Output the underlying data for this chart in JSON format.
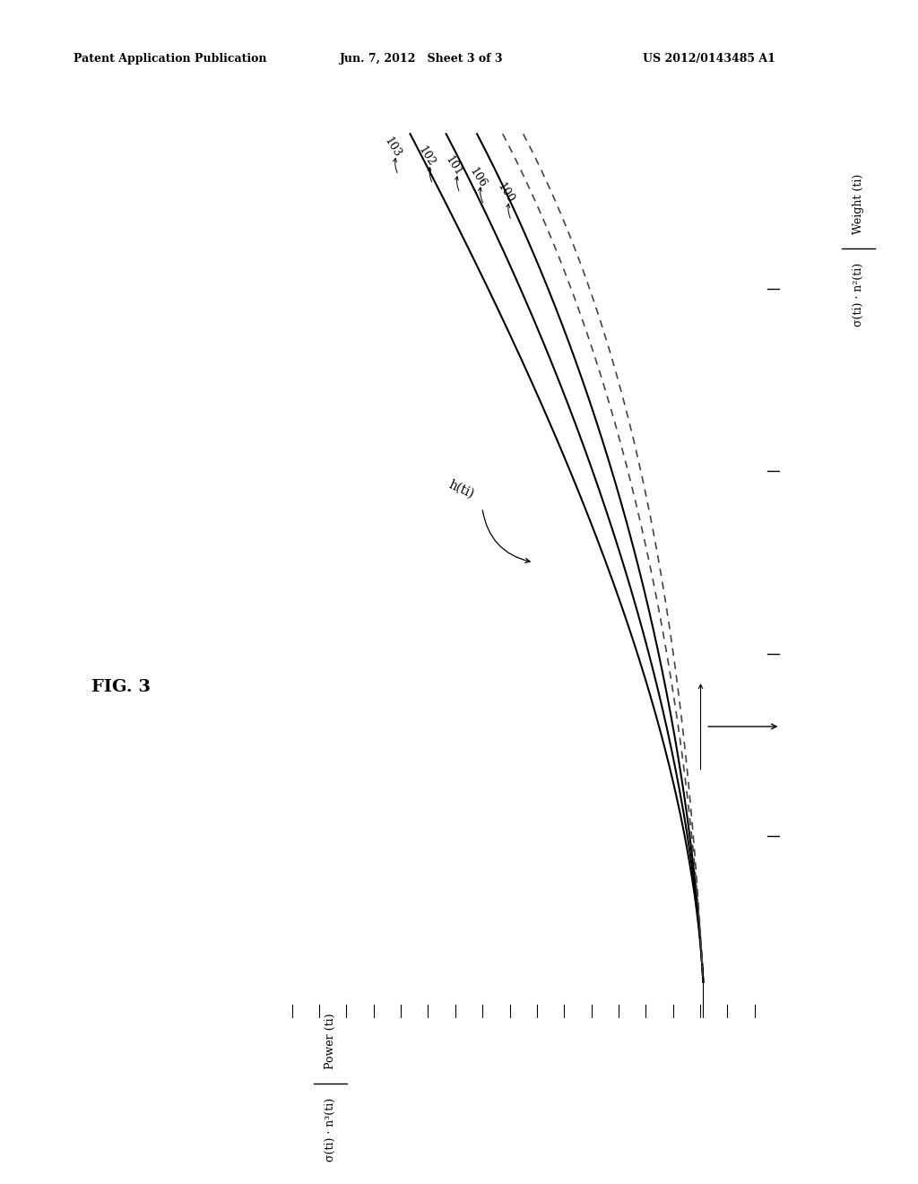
{
  "background_color": "#ffffff",
  "header_left": "Patent Application Publication",
  "header_center": "Jun. 7, 2012   Sheet 3 of 3",
  "header_right": "US 2012/0143485 A1",
  "fig_label": "FIG. 3",
  "h_label": "h(ti)",
  "ylabel_top": "Weight (ti)",
  "ylabel_bot": "σ(ti) · n²(ti)",
  "xlabel_top": "Power (ti)",
  "xlabel_bot": "σ(ti) · n³(ti)"
}
